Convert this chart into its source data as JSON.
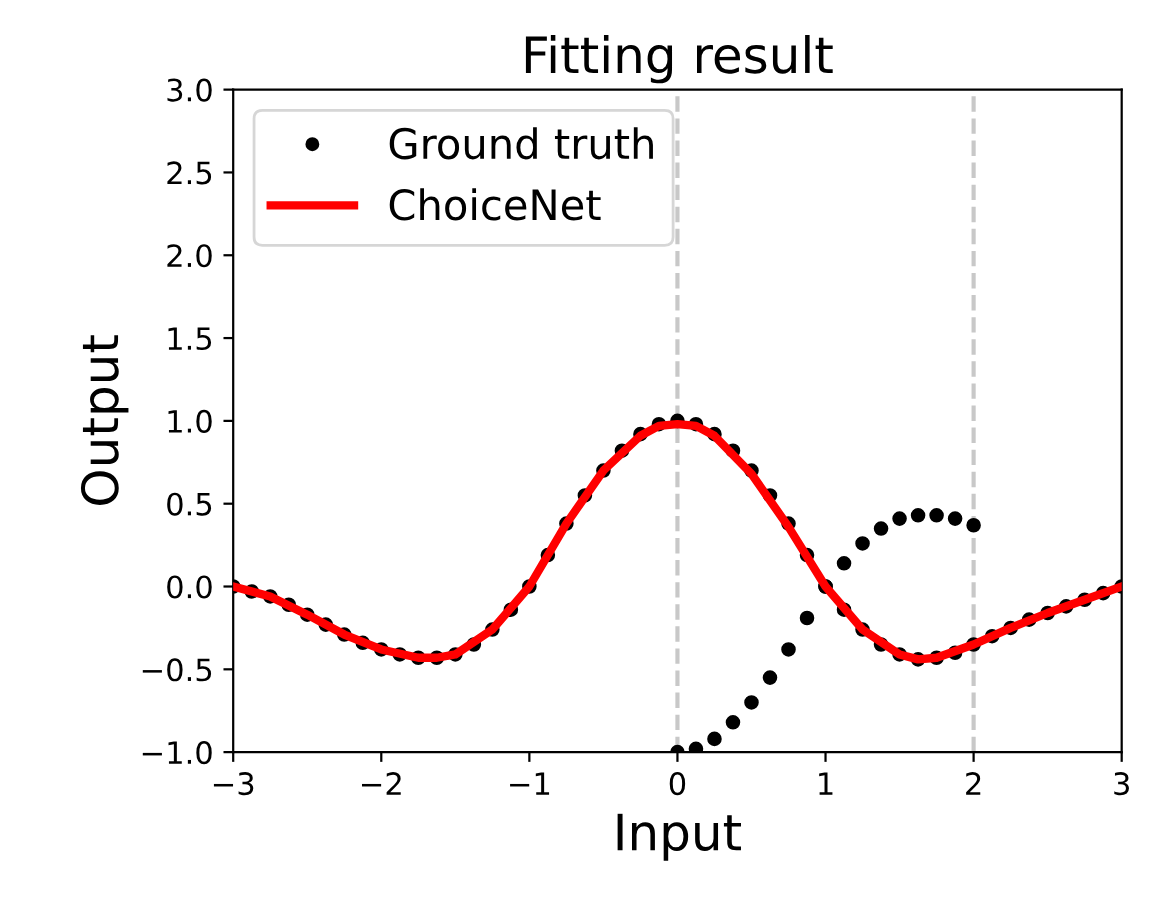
{
  "chart_data": {
    "type": "line",
    "title": "Fitting result",
    "xlabel": "Input",
    "ylabel": "Output",
    "xlim": [
      -3,
      3
    ],
    "ylim": [
      -1.0,
      3.0
    ],
    "xticks": [
      {
        "value": -3,
        "label": "−3"
      },
      {
        "value": -2,
        "label": "−2"
      },
      {
        "value": -1,
        "label": "−1"
      },
      0,
      1,
      2,
      3
    ],
    "yticks": [
      {
        "value": -1.0,
        "label": "−1.0"
      },
      {
        "value": -0.5,
        "label": "−0.5"
      },
      {
        "value": 0.0,
        "label": "0.0"
      },
      {
        "value": 0.5,
        "label": "0.5"
      },
      {
        "value": 1.0,
        "label": "1.0"
      },
      {
        "value": 1.5,
        "label": "1.5"
      },
      {
        "value": 2.0,
        "label": "2.0"
      },
      {
        "value": 2.5,
        "label": "2.5"
      },
      {
        "value": 3.0,
        "label": "3.0"
      }
    ],
    "grid": false,
    "legend": "top left",
    "ref_lines": [
      {
        "axis": "x",
        "value": 0,
        "color": "#c8c8c8",
        "line_style": "dashed"
      },
      {
        "axis": "x",
        "value": 2,
        "color": "#c8c8c8",
        "line_style": "dashed"
      }
    ],
    "series": [
      {
        "name": "Ground truth",
        "type": "scatter",
        "marker": "circle",
        "color": "#000000",
        "x": [
          -3,
          -2.875,
          -2.75,
          -2.625,
          -2.5,
          -2.375,
          -2.25,
          -2.125,
          -2,
          -1.875,
          -1.75,
          -1.625,
          -1.5,
          -1.375,
          -1.25,
          -1.125,
          -1,
          -0.875,
          -0.75,
          -0.625,
          -0.5,
          -0.375,
          -0.25,
          -0.125,
          0,
          0.125,
          0.25,
          0.375,
          0.5,
          0.625,
          0.75,
          0.875,
          1,
          1.125,
          1.25,
          1.375,
          1.5,
          1.625,
          1.75,
          1.875,
          2,
          2.125,
          2.25,
          2.375,
          2.5,
          2.625,
          2.75,
          2.875,
          3,
          0,
          0.125,
          0.25,
          0.375,
          0.5,
          0.625,
          0.75,
          0.875,
          1,
          1.125,
          1.25,
          1.375,
          1.5,
          1.625,
          1.75,
          1.875,
          2
        ],
        "values": [
          0.0,
          -0.03,
          -0.06,
          -0.11,
          -0.17,
          -0.23,
          -0.29,
          -0.34,
          -0.38,
          -0.41,
          -0.43,
          -0.43,
          -0.41,
          -0.35,
          -0.26,
          -0.14,
          0.0,
          0.19,
          0.38,
          0.55,
          0.7,
          0.82,
          0.92,
          0.98,
          1.0,
          0.98,
          0.92,
          0.82,
          0.7,
          0.55,
          0.38,
          0.19,
          0.0,
          -0.14,
          -0.26,
          -0.35,
          -0.41,
          -0.44,
          -0.43,
          -0.4,
          -0.35,
          -0.3,
          -0.25,
          -0.2,
          -0.16,
          -0.12,
          -0.08,
          -0.04,
          0.0,
          -1.0,
          -0.98,
          -0.92,
          -0.82,
          -0.7,
          -0.55,
          -0.38,
          -0.19,
          0.0,
          0.14,
          0.26,
          0.35,
          0.41,
          0.43,
          0.43,
          0.41,
          0.37
        ]
      },
      {
        "name": "ChoiceNet",
        "marker": "none",
        "line_style": "solid",
        "color": "#ff0000",
        "x": [
          -3,
          -2.75,
          -2.5,
          -2.25,
          -2,
          -1.75,
          -1.625,
          -1.5,
          -1.25,
          -1,
          -0.75,
          -0.5,
          -0.25,
          -0.125,
          0,
          0.125,
          0.25,
          0.5,
          0.75,
          1,
          1.25,
          1.5,
          1.625,
          1.75,
          2,
          2.25,
          2.5,
          2.75,
          3
        ],
        "values": [
          0.0,
          -0.06,
          -0.17,
          -0.29,
          -0.38,
          -0.43,
          -0.43,
          -0.41,
          -0.26,
          0.0,
          0.38,
          0.7,
          0.91,
          0.97,
          0.98,
          0.97,
          0.91,
          0.68,
          0.36,
          0.0,
          -0.26,
          -0.41,
          -0.44,
          -0.43,
          -0.35,
          -0.25,
          -0.16,
          -0.08,
          0.0
        ]
      }
    ]
  }
}
